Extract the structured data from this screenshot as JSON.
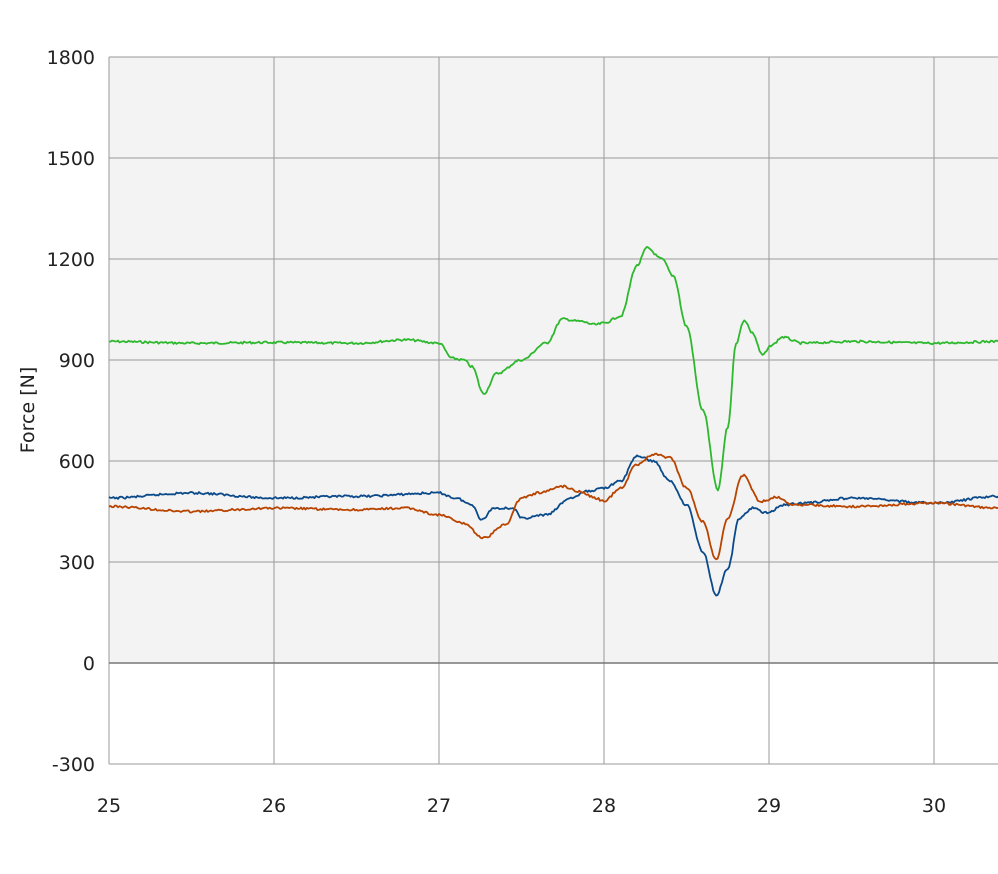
{
  "chart_data": {
    "type": "line",
    "title": "",
    "xlabel": "",
    "ylabel": "Force [N]",
    "xlim": [
      25,
      30.39
    ],
    "ylim": [
      -300,
      1800
    ],
    "xticks": [
      "25",
      "26",
      "27",
      "28",
      "29",
      "30"
    ],
    "yticks": [
      "1800",
      "1500",
      "1200",
      "900",
      "600",
      "300",
      "0",
      "-300"
    ],
    "grid": true,
    "legend": "none",
    "series": [
      {
        "color": "#2eb82e",
        "x": [
          25,
          25.5,
          26,
          26.5,
          26.8,
          27.0,
          27.08,
          27.15,
          27.2,
          27.27,
          27.35,
          27.5,
          27.65,
          27.75,
          27.85,
          27.95,
          28.0,
          28.1,
          28.2,
          28.26,
          28.35,
          28.42,
          28.5,
          28.6,
          28.69,
          28.75,
          28.8,
          28.85,
          28.9,
          28.96,
          29.02,
          29.08,
          29.2,
          29.5,
          30,
          30.39
        ],
        "y": [
          955,
          950,
          952,
          950,
          960,
          950,
          905,
          900,
          880,
          800,
          860,
          900,
          950,
          1022,
          1015,
          1005,
          1010,
          1030,
          1180,
          1233,
          1200,
          1150,
          1000,
          750,
          514,
          700,
          950,
          1019,
          980,
          915,
          945,
          968,
          950,
          955,
          950,
          955
        ]
      },
      {
        "color": "#0b4a8a",
        "x": [
          25,
          25.5,
          26,
          26.5,
          27.0,
          27.1,
          27.2,
          27.26,
          27.33,
          27.45,
          27.5,
          27.65,
          27.8,
          27.9,
          28.0,
          28.1,
          28.2,
          28.3,
          28.4,
          28.5,
          28.6,
          28.68,
          28.75,
          28.82,
          28.9,
          28.98,
          29.1,
          29.2,
          29.5,
          30,
          30.39
        ],
        "y": [
          490,
          505,
          490,
          495,
          505,
          490,
          470,
          425,
          460,
          460,
          430,
          440,
          490,
          510,
          520,
          540,
          615,
          600,
          540,
          470,
          330,
          202,
          280,
          430,
          460,
          446,
          470,
          475,
          490,
          475,
          495
        ]
      },
      {
        "color": "#b84400",
        "x": [
          25,
          25.5,
          26,
          26.5,
          26.8,
          27.0,
          27.15,
          27.27,
          27.4,
          27.5,
          27.6,
          27.75,
          27.85,
          27.95,
          28.0,
          28.1,
          28.2,
          28.3,
          28.4,
          28.5,
          28.6,
          28.68,
          28.75,
          28.84,
          28.95,
          29.05,
          29.15,
          29.5,
          30,
          30.39
        ],
        "y": [
          465,
          450,
          460,
          455,
          460,
          440,
          415,
          371,
          410,
          490,
          505,
          525,
          510,
          490,
          480,
          520,
          590,
          620,
          610,
          520,
          420,
          306,
          430,
          558,
          480,
          493,
          470,
          465,
          475,
          460
        ]
      }
    ]
  }
}
